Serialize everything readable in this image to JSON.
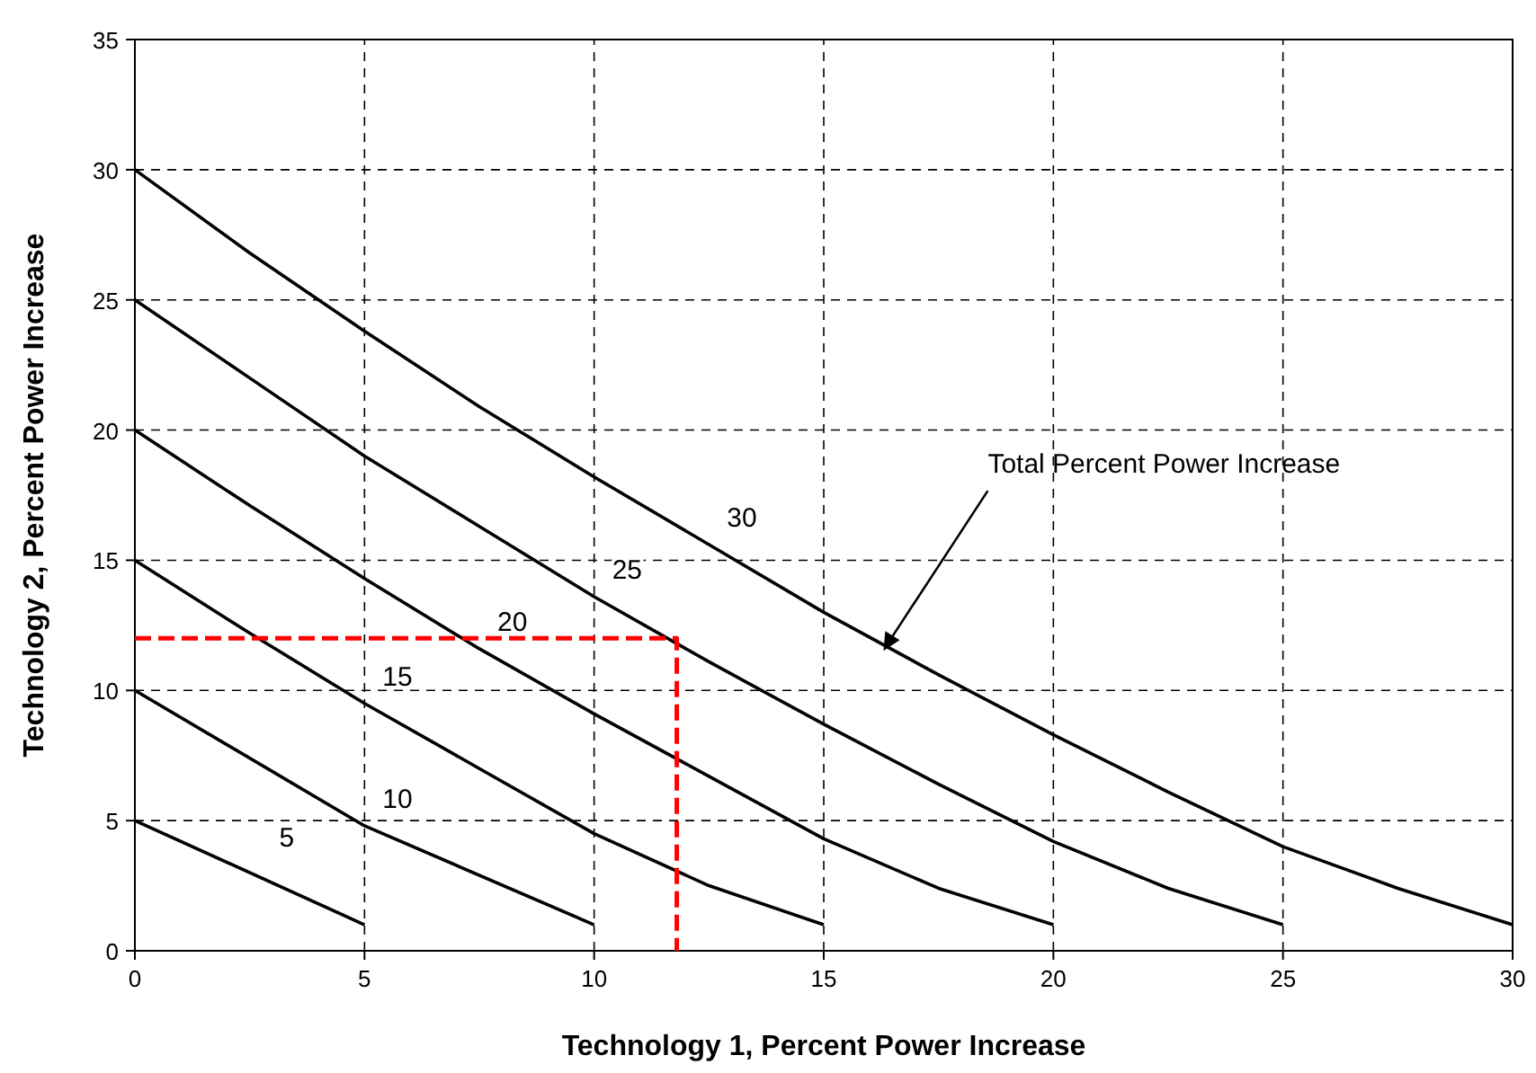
{
  "chart_data": {
    "type": "line",
    "xlabel": "Technology 1, Percent Power Increase",
    "ylabel": "Technology 2, Percent Power Increase",
    "xlim": [
      0,
      30
    ],
    "ylim": [
      0,
      35
    ],
    "xticks": [
      0,
      5,
      10,
      15,
      20,
      25,
      30
    ],
    "yticks": [
      0,
      5,
      10,
      15,
      20,
      25,
      30,
      35
    ],
    "grid": true,
    "marker": "none",
    "line_style": "solid",
    "series": [
      {
        "name": "5",
        "color": "#000000",
        "x": [
          0,
          5
        ],
        "values": [
          5,
          1
        ]
      },
      {
        "name": "10",
        "color": "#000000",
        "x": [
          0,
          5,
          10
        ],
        "values": [
          10,
          4.8,
          1
        ]
      },
      {
        "name": "15",
        "color": "#000000",
        "x": [
          0,
          2.5,
          5,
          7.5,
          10,
          12.5,
          15
        ],
        "values": [
          15,
          12.2,
          9.5,
          7,
          4.5,
          2.5,
          1
        ]
      },
      {
        "name": "20",
        "color": "#000000",
        "x": [
          0,
          2.5,
          5,
          7.5,
          10,
          12.5,
          15,
          17.5,
          20
        ],
        "values": [
          20,
          17.1,
          14.3,
          11.6,
          9.1,
          6.7,
          4.3,
          2.4,
          1
        ]
      },
      {
        "name": "25",
        "color": "#000000",
        "x": [
          0,
          2.5,
          5,
          7.5,
          10,
          12.5,
          15,
          17.5,
          20,
          22.5,
          25
        ],
        "values": [
          25,
          22,
          19,
          16.3,
          13.6,
          11.1,
          8.7,
          6.4,
          4.2,
          2.4,
          1
        ]
      },
      {
        "name": "30",
        "color": "#000000",
        "x": [
          0,
          2.5,
          5,
          7.5,
          10,
          12.5,
          15,
          17.5,
          20,
          22.5,
          25,
          27.5,
          30
        ],
        "values": [
          30,
          26.8,
          23.8,
          20.9,
          18.2,
          15.6,
          13,
          10.6,
          8.3,
          6.1,
          4,
          2.4,
          1
        ]
      },
      {
        "color": "#ff0000",
        "line_style": "dashed",
        "x": [
          0,
          11.8,
          11.8
        ],
        "values": [
          12,
          12,
          0
        ]
      }
    ],
    "annotations": [
      {
        "text": "Total Percent Power Increase",
        "x": 16.3,
        "y": 11.8
      }
    ]
  }
}
